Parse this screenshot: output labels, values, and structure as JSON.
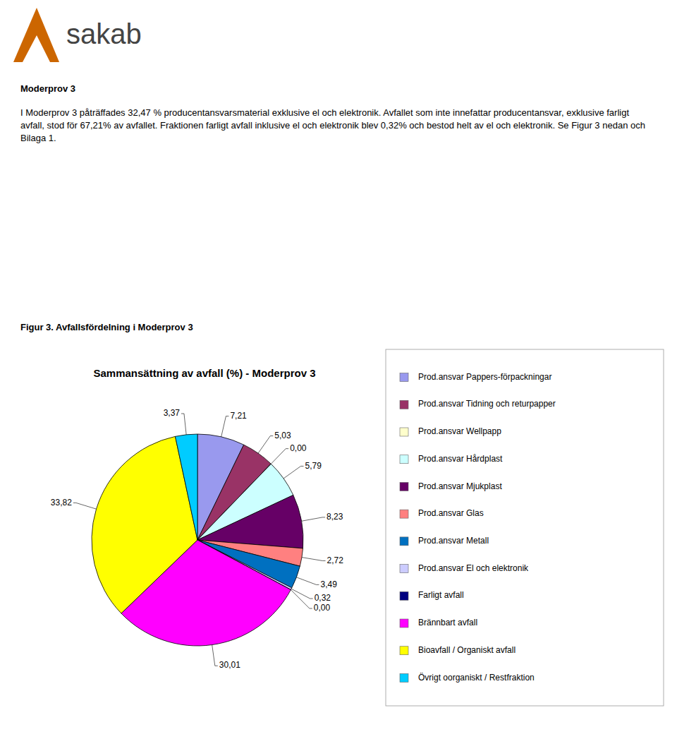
{
  "logo": {
    "text": "sakab",
    "color": "#CC6600"
  },
  "heading": "Moderprov 3",
  "body": "I Moderprov 3 påträffades 32,47 % producentansvarsmaterial exklusive el och elektronik. Avfallet som inte innefattar producentansvar, exklusive farligt avfall, stod för 67,21% av avfallet. Fraktionen farligt avfall inklusive el och elektronik blev 0,32% och bestod helt av el och elektronik. Se Figur 3 nedan och Bilaga 1.",
  "caption": "Figur 3. Avfallsfördelning i Moderprov 3",
  "chart_data": {
    "type": "pie",
    "title": "Sammansättning av avfall (%) - Moderprov 3",
    "labels": [
      "Prod.ansvar Pappers-förpackningar",
      "Prod.ansvar Tidning och returpapper",
      "Prod.ansvar Wellpapp",
      "Prod.ansvar Hårdplast",
      "Prod.ansvar Mjukplast",
      "Prod.ansvar Glas",
      "Prod.ansvar Metall",
      "Prod.ansvar El och elektronik",
      "Farligt avfall",
      "Brännbart avfall",
      "Bioavfall / Organiskt avfall",
      "Övrigt oorganiskt / Restfraktion"
    ],
    "values": [
      7.21,
      5.03,
      0.0,
      5.79,
      8.23,
      2.72,
      3.49,
      0.32,
      0.0,
      30.01,
      33.82,
      3.37
    ],
    "value_labels": [
      "7,21",
      "5,03",
      "0,00",
      "5,79",
      "8,23",
      "2,72",
      "3,49",
      "0,32",
      "0,00",
      "30,01",
      "33,82",
      "3,37"
    ],
    "colors": [
      "#9999EE",
      "#993366",
      "#FFFFCC",
      "#CCFFFF",
      "#660066",
      "#FF8080",
      "#0070C0",
      "#CCCCFF",
      "#000080",
      "#FF00FF",
      "#FFFF00",
      "#00CCFF"
    ],
    "data_labels": true,
    "legend": "right"
  }
}
